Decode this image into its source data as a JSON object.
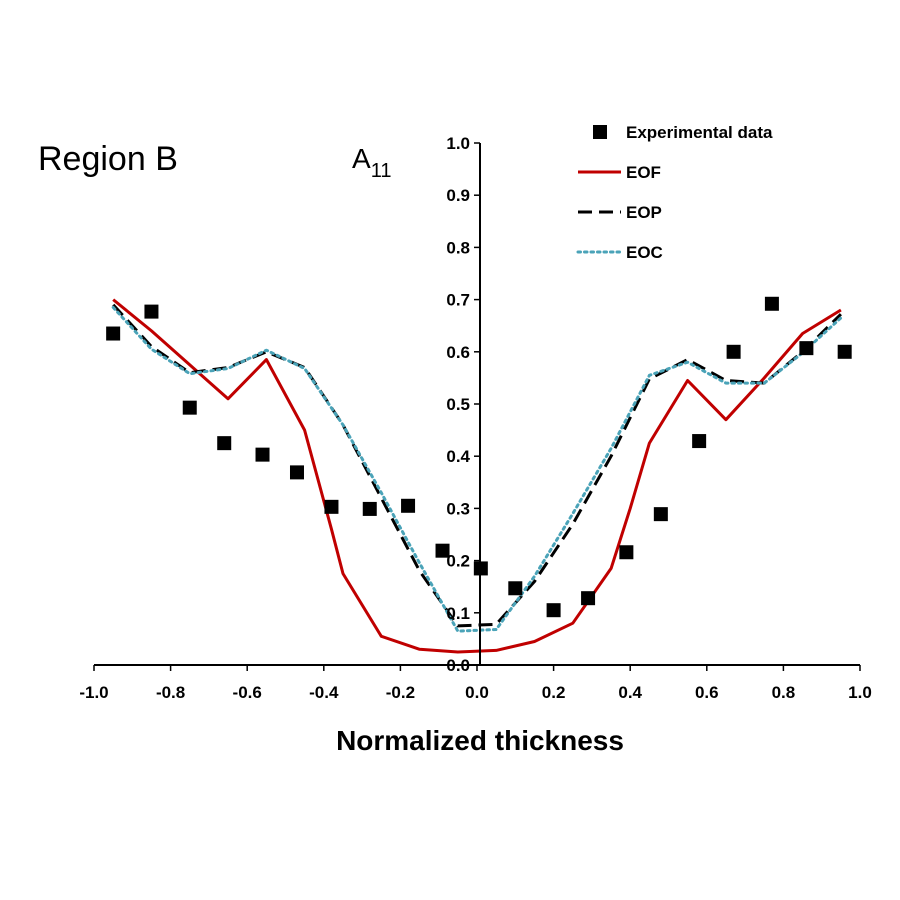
{
  "chart_data": {
    "type": "line",
    "panel_label": "Region B",
    "ylabel": "A",
    "ylabel_subscript": "11",
    "xlabel": "Normalized thickness",
    "xlim": [
      -1.0,
      1.0
    ],
    "ylim": [
      0.0,
      1.0
    ],
    "x_ticks": [
      -1.0,
      -0.8,
      -0.6,
      -0.4,
      -0.2,
      0.0,
      0.2,
      0.4,
      0.6,
      0.8,
      1.0
    ],
    "x_tick_labels": [
      "-1.0",
      "-0.8",
      "-0.6",
      "-0.4",
      "-0.2",
      "0.0",
      "0.2",
      "0.4",
      "0.6",
      "0.8",
      "1.0"
    ],
    "y_ticks": [
      0.0,
      0.1,
      0.2,
      0.3,
      0.4,
      0.5,
      0.6,
      0.7,
      0.8,
      0.9,
      1.0
    ],
    "y_tick_labels": [
      "0.0",
      "0.1",
      "0.2",
      "0.3",
      "0.4",
      "0.5",
      "0.6",
      "0.7",
      "0.8",
      "0.9",
      "1.0"
    ],
    "grid": false,
    "legend_position": "top-right",
    "series": [
      {
        "name": "Experimental data",
        "kind": "scatter",
        "marker": "square",
        "color": "#000000",
        "x": [
          -0.95,
          -0.85,
          -0.75,
          -0.66,
          -0.56,
          -0.47,
          -0.38,
          -0.28,
          -0.18,
          -0.09,
          0.01,
          0.1,
          0.2,
          0.29,
          0.39,
          0.48,
          0.58,
          0.67,
          0.77,
          0.86,
          0.96
        ],
        "y": [
          0.635,
          0.677,
          0.493,
          0.425,
          0.403,
          0.369,
          0.303,
          0.299,
          0.305,
          0.219,
          0.185,
          0.147,
          0.105,
          0.128,
          0.216,
          0.289,
          0.429,
          0.6,
          0.692,
          0.607,
          0.6
        ]
      },
      {
        "name": "EOF",
        "kind": "line",
        "style": "solid",
        "color": "#c00000",
        "x": [
          -0.95,
          -0.85,
          -0.75,
          -0.65,
          -0.55,
          -0.45,
          -0.38,
          -0.35,
          -0.25,
          -0.15,
          -0.05,
          0.05,
          0.15,
          0.25,
          0.35,
          0.4,
          0.45,
          0.55,
          0.65,
          0.75,
          0.85,
          0.95
        ],
        "y": [
          0.7,
          0.64,
          0.575,
          0.51,
          0.585,
          0.45,
          0.26,
          0.175,
          0.055,
          0.03,
          0.025,
          0.028,
          0.045,
          0.08,
          0.185,
          0.3,
          0.425,
          0.545,
          0.47,
          0.55,
          0.635,
          0.68
        ]
      },
      {
        "name": "EOP",
        "kind": "line",
        "style": "dashed",
        "color": "#000000",
        "x": [
          -0.95,
          -0.85,
          -0.75,
          -0.65,
          -0.55,
          -0.45,
          -0.35,
          -0.25,
          -0.15,
          -0.05,
          0.05,
          0.15,
          0.25,
          0.35,
          0.45,
          0.55,
          0.65,
          0.75,
          0.85,
          0.95
        ],
        "y": [
          0.69,
          0.61,
          0.56,
          0.57,
          0.6,
          0.57,
          0.46,
          0.32,
          0.18,
          0.075,
          0.078,
          0.16,
          0.27,
          0.4,
          0.548,
          0.585,
          0.545,
          0.54,
          0.6,
          0.672
        ]
      },
      {
        "name": "EOC",
        "kind": "line",
        "style": "dotted",
        "color": "#4aa3b8",
        "x": [
          -0.95,
          -0.85,
          -0.75,
          -0.65,
          -0.55,
          -0.45,
          -0.35,
          -0.25,
          -0.15,
          -0.05,
          0.05,
          0.15,
          0.25,
          0.35,
          0.45,
          0.55,
          0.65,
          0.75,
          0.85,
          0.95
        ],
        "y": [
          0.685,
          0.605,
          0.558,
          0.568,
          0.603,
          0.568,
          0.46,
          0.33,
          0.195,
          0.065,
          0.068,
          0.17,
          0.29,
          0.415,
          0.555,
          0.58,
          0.54,
          0.54,
          0.598,
          0.665
        ]
      }
    ]
  }
}
